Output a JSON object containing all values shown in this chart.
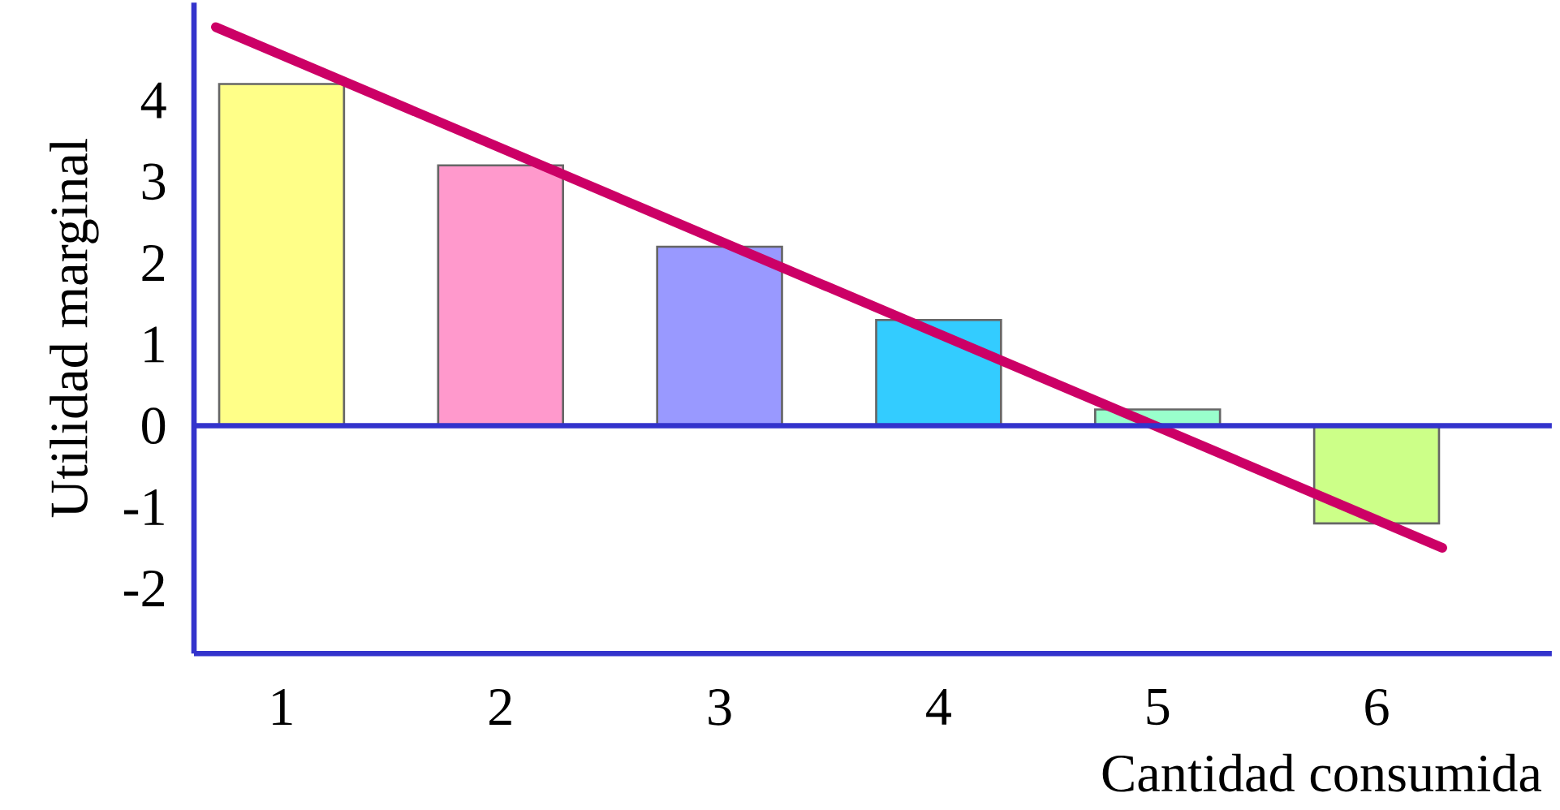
{
  "chart_data": {
    "type": "bar",
    "xlabel": "Cantidad consumida",
    "ylabel": "Utilidad marginal",
    "x": [
      1,
      2,
      3,
      4,
      5,
      6
    ],
    "values": [
      4.2,
      3.2,
      2.2,
      1.3,
      0.2,
      -1.2
    ],
    "colors": [
      "#ffff88",
      "#ff99cc",
      "#9999ff",
      "#33ccff",
      "#99ffcc",
      "#ccff88"
    ],
    "series": [
      {
        "type": "line",
        "color": "#cc0066",
        "x": [
          0.7,
          6.3
        ],
        "values": [
          4.9,
          -1.5
        ]
      }
    ],
    "xlim": [
      0.6,
      6.8
    ],
    "ylim": [
      -2.8,
      5.2
    ],
    "xticks": [
      1,
      2,
      3,
      4,
      5,
      6
    ],
    "yticks": [
      -2,
      -1,
      0,
      1,
      2,
      3,
      4
    ],
    "ref_lines": [
      {
        "axis": "y",
        "value": 0,
        "color": "#3333cc"
      }
    ]
  }
}
